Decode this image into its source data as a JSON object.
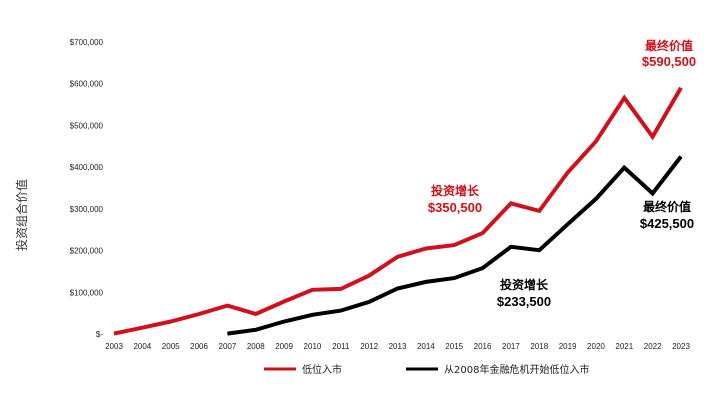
{
  "colors": {
    "red": "#D0111B",
    "black": "#000000"
  },
  "chart_data": {
    "type": "line",
    "ylabel": "投资组合价值",
    "ylim": [
      0,
      700000
    ],
    "yticks": [
      0,
      100000,
      200000,
      300000,
      400000,
      500000,
      600000,
      700000
    ],
    "ytick_labels": [
      "$-",
      "$100,000",
      "$200,000",
      "$300,000",
      "$400,000",
      "$500,000",
      "$600,000",
      "$700,000"
    ],
    "x": [
      2003,
      2004,
      2005,
      2006,
      2007,
      2008,
      2009,
      2010,
      2011,
      2012,
      2013,
      2014,
      2015,
      2016,
      2017,
      2018,
      2019,
      2020,
      2021,
      2022,
      2023
    ],
    "xtick_labels": [
      "2003",
      "2004",
      "2005",
      "2006",
      "2007",
      "2008",
      "2009",
      "2010",
      "2011",
      "2012",
      "2013",
      "2014",
      "2015",
      "2016",
      "2017",
      "2018",
      "2019",
      "2020",
      "2021",
      "2022",
      "2023"
    ],
    "grid": false,
    "legend_position": "bottom",
    "series": [
      {
        "name": "低位入市",
        "color": "#D0111B",
        "x": [
          2003,
          2004,
          2005,
          2006,
          2007,
          2008,
          2009,
          2010,
          2011,
          2012,
          2013,
          2014,
          2015,
          2016,
          2017,
          2018,
          2019,
          2020,
          2021,
          2022,
          2023
        ],
        "values": [
          1000,
          15000,
          30000,
          48000,
          68000,
          48000,
          78000,
          106000,
          108000,
          140000,
          185000,
          205000,
          213000,
          242000,
          313000,
          295000,
          387000,
          462000,
          566000,
          473000,
          590500
        ]
      },
      {
        "name": "从2008年金融危机开始低位入市",
        "color": "#000000",
        "x": [
          2007,
          2008,
          2009,
          2010,
          2011,
          2012,
          2013,
          2014,
          2015,
          2016,
          2017,
          2018,
          2019,
          2020,
          2021,
          2022,
          2023
        ],
        "values": [
          1000,
          10000,
          30000,
          46000,
          56000,
          77000,
          109000,
          125000,
          134000,
          158000,
          209000,
          201000,
          263000,
          324000,
          399000,
          337000,
          425500
        ]
      }
    ],
    "annotations": [
      {
        "series": 0,
        "label": "投资增长",
        "value": "$350,500"
      },
      {
        "series": 0,
        "label": "最终价值",
        "value": "$590,500"
      },
      {
        "series": 1,
        "label": "投资增长",
        "value": "$233,500"
      },
      {
        "series": 1,
        "label": "最终价值",
        "value": "$425,500"
      }
    ]
  }
}
